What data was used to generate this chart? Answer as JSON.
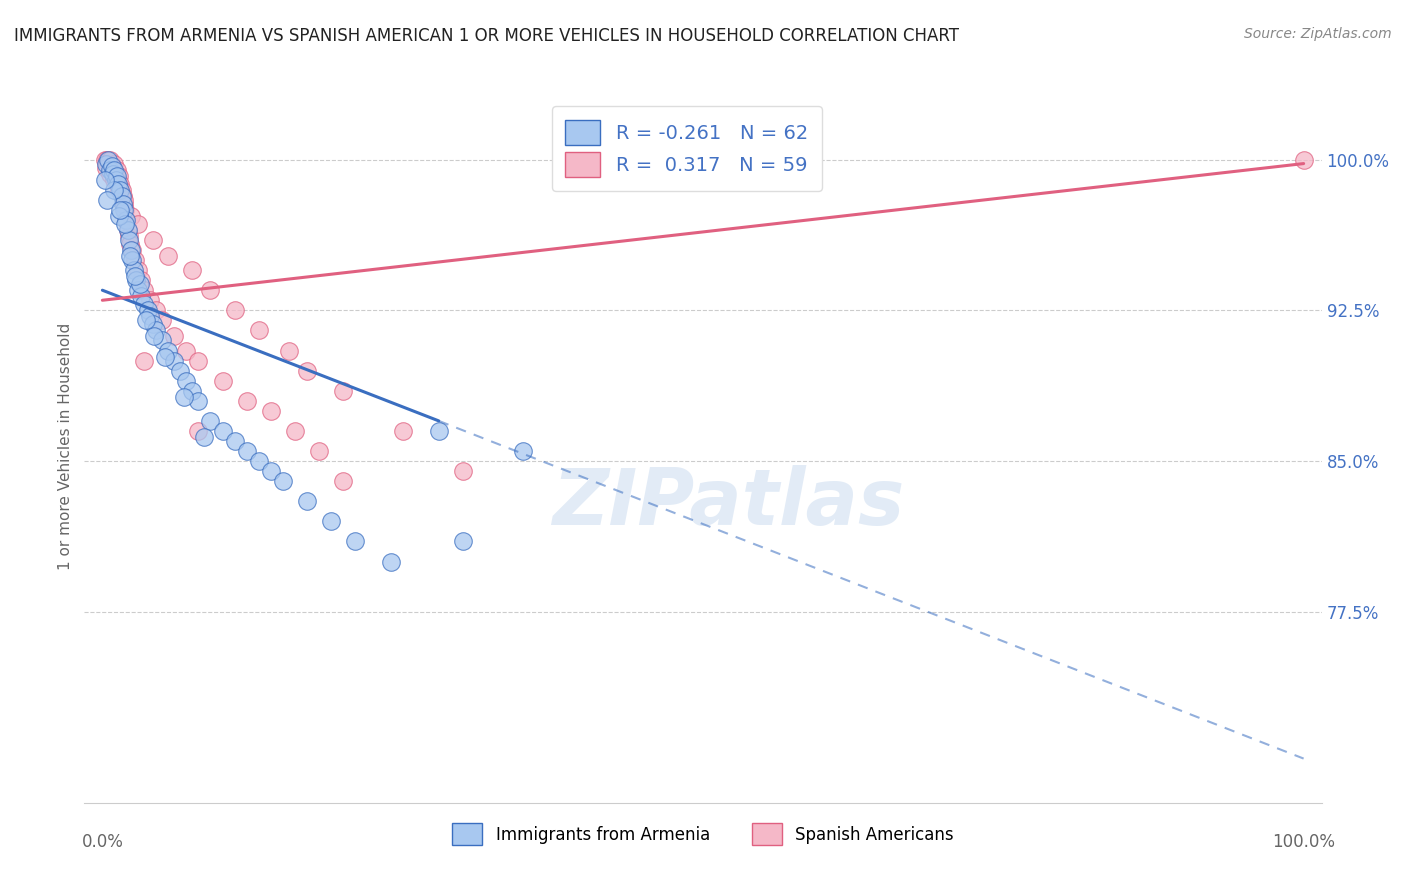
{
  "title": "IMMIGRANTS FROM ARMENIA VS SPANISH AMERICAN 1 OR MORE VEHICLES IN HOUSEHOLD CORRELATION CHART",
  "source": "Source: ZipAtlas.com",
  "ylabel": "1 or more Vehicles in Household",
  "ymin": 68.0,
  "ymax": 103.5,
  "xmin": -1.5,
  "xmax": 101.5,
  "watermark": "ZIPatlas",
  "legend": {
    "blue_label": "Immigrants from Armenia",
    "pink_label": "Spanish Americans",
    "blue_R": -0.261,
    "blue_N": 62,
    "pink_R": 0.317,
    "pink_N": 59
  },
  "blue_scatter": {
    "x": [
      0.3,
      0.5,
      0.6,
      0.8,
      0.9,
      1.0,
      1.1,
      1.2,
      1.3,
      1.5,
      1.6,
      1.7,
      1.8,
      2.0,
      2.1,
      2.2,
      2.4,
      2.5,
      2.6,
      2.8,
      3.0,
      3.2,
      3.5,
      3.8,
      4.0,
      4.2,
      4.5,
      5.0,
      5.5,
      6.0,
      6.5,
      7.0,
      7.5,
      8.0,
      9.0,
      10.0,
      11.0,
      12.0,
      13.0,
      14.0,
      15.0,
      17.0,
      19.0,
      21.0,
      24.0,
      28.0,
      1.0,
      1.4,
      1.9,
      2.3,
      3.1,
      4.3,
      5.2,
      6.8,
      8.5,
      35.0,
      0.2,
      0.4,
      1.5,
      2.7,
      3.6,
      30.0
    ],
    "y": [
      99.8,
      100.0,
      99.5,
      99.7,
      99.3,
      99.5,
      99.0,
      99.2,
      98.8,
      98.5,
      98.2,
      97.8,
      97.5,
      97.0,
      96.5,
      96.0,
      95.5,
      95.0,
      94.5,
      94.0,
      93.5,
      93.2,
      92.8,
      92.5,
      92.2,
      91.8,
      91.5,
      91.0,
      90.5,
      90.0,
      89.5,
      89.0,
      88.5,
      88.0,
      87.0,
      86.5,
      86.0,
      85.5,
      85.0,
      84.5,
      84.0,
      83.0,
      82.0,
      81.0,
      80.0,
      86.5,
      98.5,
      97.2,
      96.8,
      95.2,
      93.8,
      91.2,
      90.2,
      88.2,
      86.2,
      85.5,
      99.0,
      98.0,
      97.5,
      94.2,
      92.0,
      81.0
    ]
  },
  "pink_scatter": {
    "x": [
      0.2,
      0.4,
      0.5,
      0.6,
      0.7,
      0.8,
      0.9,
      1.0,
      1.1,
      1.2,
      1.3,
      1.4,
      1.5,
      1.6,
      1.7,
      1.8,
      1.9,
      2.0,
      2.1,
      2.2,
      2.3,
      2.5,
      2.7,
      3.0,
      3.2,
      3.5,
      4.0,
      4.5,
      5.0,
      6.0,
      7.0,
      8.0,
      10.0,
      12.0,
      14.0,
      16.0,
      18.0,
      100.0,
      0.3,
      0.6,
      1.0,
      1.4,
      1.8,
      2.4,
      3.0,
      4.2,
      5.5,
      7.5,
      9.0,
      11.0,
      13.0,
      15.5,
      17.0,
      20.0,
      25.0,
      30.0,
      20.0,
      8.0,
      3.5
    ],
    "y": [
      100.0,
      100.0,
      99.8,
      100.0,
      99.5,
      99.7,
      99.5,
      99.8,
      99.3,
      99.5,
      99.0,
      99.2,
      98.8,
      98.5,
      98.2,
      97.8,
      97.5,
      97.0,
      96.5,
      96.2,
      95.8,
      95.5,
      95.0,
      94.5,
      94.0,
      93.5,
      93.0,
      92.5,
      92.0,
      91.2,
      90.5,
      90.0,
      89.0,
      88.0,
      87.5,
      86.5,
      85.5,
      100.0,
      99.6,
      99.3,
      99.0,
      98.5,
      98.0,
      97.2,
      96.8,
      96.0,
      95.2,
      94.5,
      93.5,
      92.5,
      91.5,
      90.5,
      89.5,
      88.5,
      86.5,
      84.5,
      84.0,
      86.5,
      90.0
    ]
  },
  "blue_line": {
    "x_solid_start": 0.0,
    "y_solid_start": 93.5,
    "x_solid_end": 28.0,
    "y_solid_end": 87.0,
    "x_dash_end": 100.0,
    "y_dash_end": 70.2
  },
  "pink_line": {
    "x_start": 0.0,
    "y_start": 93.0,
    "x_end": 100.0,
    "y_end": 99.8
  },
  "ytick_vals": [
    77.5,
    85.0,
    92.5,
    100.0
  ],
  "ytick_labels": [
    "77.5%",
    "85.0%",
    "92.5%",
    "100.0%"
  ],
  "blue_color": "#A8C8F0",
  "pink_color": "#F5B8C8",
  "blue_line_color": "#3A6EC0",
  "pink_line_color": "#E06080",
  "title_color": "#222222",
  "axis_label_color": "#666666",
  "right_axis_color": "#4472C4",
  "grid_color": "#CCCCCC",
  "background_color": "#FFFFFF"
}
